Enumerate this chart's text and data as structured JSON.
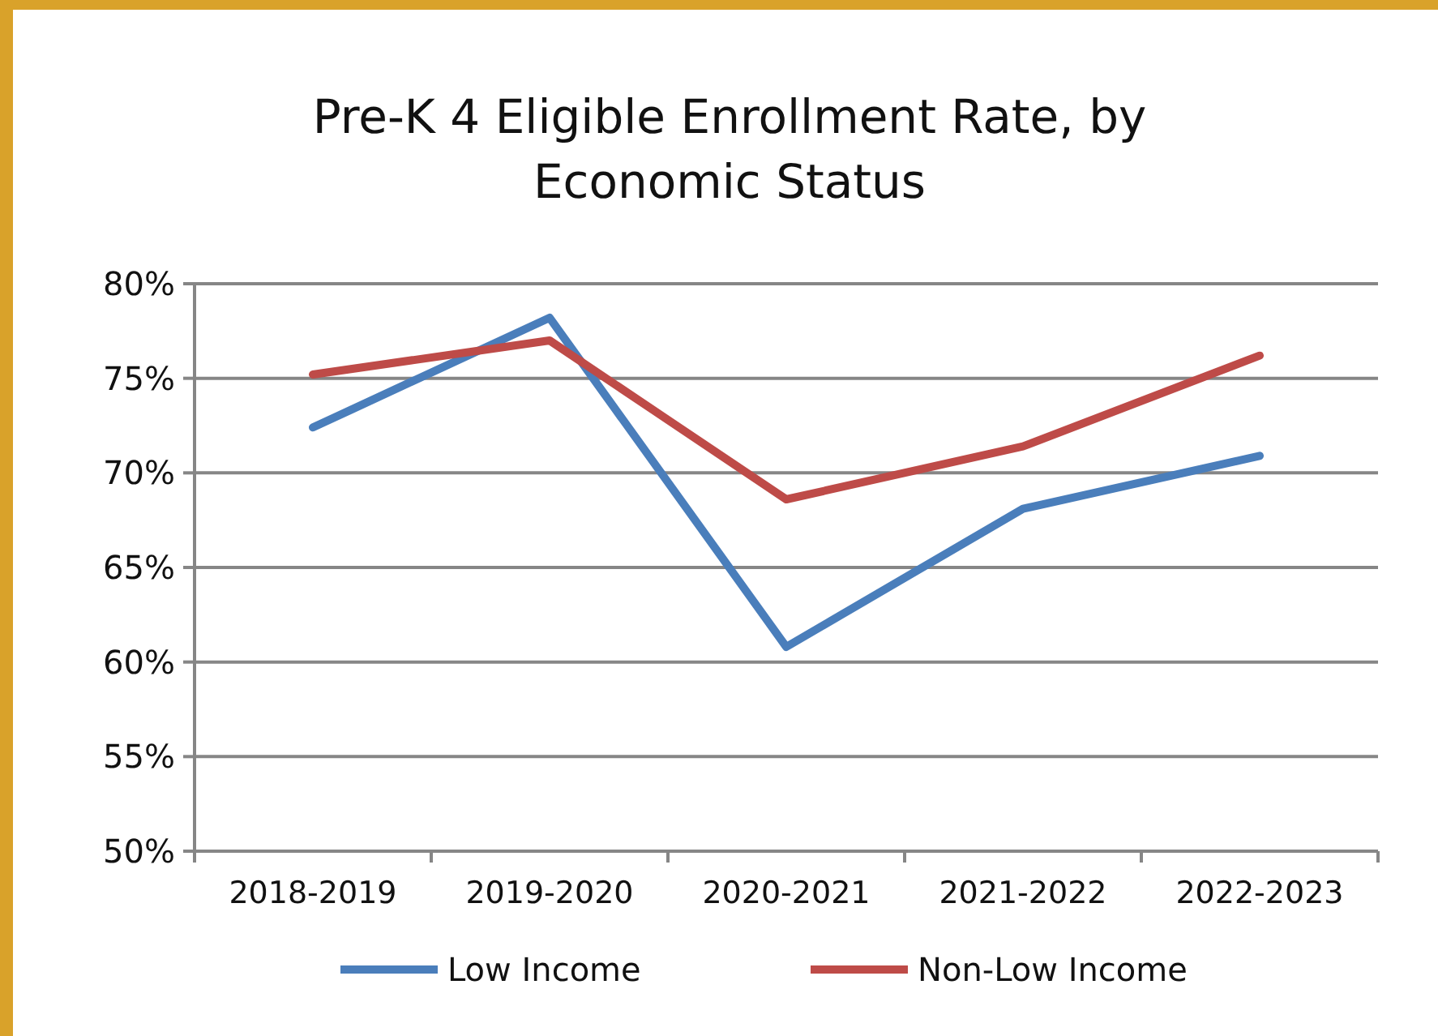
{
  "chart_data": {
    "type": "line",
    "title": "Pre-K 4 Eligible Enrollment Rate, by Economic Status",
    "categories": [
      "2018-2019",
      "2019-2020",
      "2020-2021",
      "2021-2022",
      "2022-2023"
    ],
    "series": [
      {
        "name": "Low Income",
        "color": "#4a7ebb",
        "values": [
          72.4,
          78.2,
          60.8,
          68.1,
          70.9
        ]
      },
      {
        "name": "Non-Low Income",
        "color": "#be4b48",
        "values": [
          75.2,
          77.0,
          68.6,
          71.4,
          76.2
        ]
      }
    ],
    "ylim": [
      50,
      80
    ],
    "yticks": [
      {
        "value": 50,
        "label": "50%"
      },
      {
        "value": 55,
        "label": "55%"
      },
      {
        "value": 60,
        "label": "60%"
      },
      {
        "value": 65,
        "label": "65%"
      },
      {
        "value": 70,
        "label": "70%"
      },
      {
        "value": 75,
        "label": "75%"
      },
      {
        "value": 80,
        "label": "80%"
      }
    ],
    "grid": "y",
    "legend": "bottom",
    "marker": "none",
    "line_style": "solid"
  }
}
